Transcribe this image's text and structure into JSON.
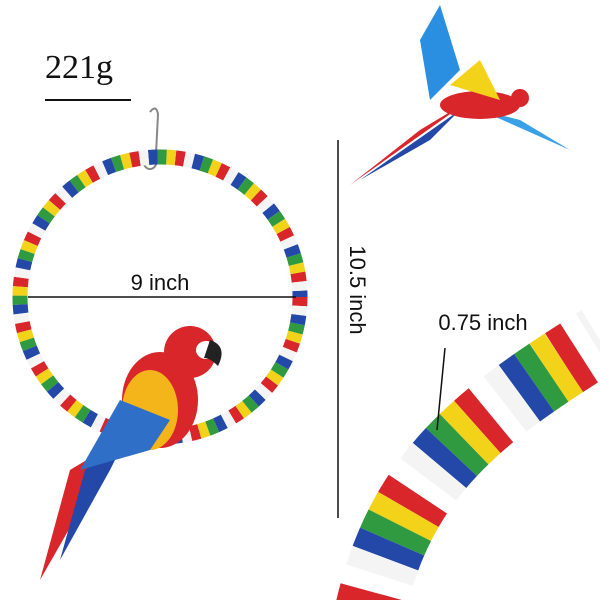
{
  "weight": "221g",
  "ring_width": "9 inch",
  "ring_height": "10.5 inch",
  "rope_thickness": "0.75 inch"
}
